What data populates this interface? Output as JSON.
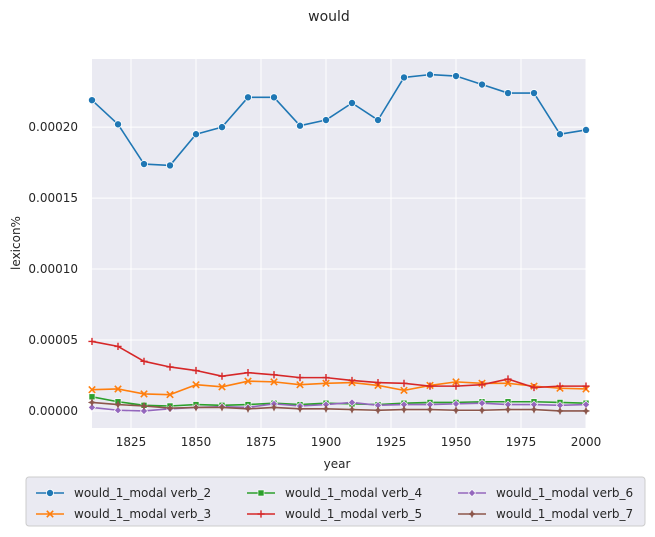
{
  "chart_data": {
    "type": "line",
    "title": "would",
    "xlabel": "year",
    "ylabel": "lexicon%",
    "xlim": [
      1810,
      2000
    ],
    "ylim": [
      -1.2e-05,
      0.000248
    ],
    "x_ticks": [
      1825,
      1850,
      1875,
      1900,
      1925,
      1950,
      1975,
      2000
    ],
    "y_ticks": [
      {
        "value": 0.0,
        "label": "0.00000"
      },
      {
        "value": 5e-05,
        "label": "0.00005"
      },
      {
        "value": 0.0001,
        "label": "0.00010"
      },
      {
        "value": 0.00015,
        "label": "0.00015"
      },
      {
        "value": 0.0002,
        "label": "0.00020"
      }
    ],
    "grid": true,
    "legend_position": "bottom, outside",
    "x": [
      1810,
      1820,
      1830,
      1840,
      1850,
      1860,
      1870,
      1880,
      1890,
      1900,
      1910,
      1920,
      1930,
      1940,
      1950,
      1960,
      1970,
      1980,
      1990,
      2000
    ],
    "series": [
      {
        "name": "would_1_modal verb_2",
        "color": "#1f77b4",
        "marker": "circle",
        "values": [
          0.000219,
          0.000202,
          0.000174,
          0.000173,
          0.000195,
          0.0002,
          0.000221,
          0.000221,
          0.000201,
          0.000205,
          0.000217,
          0.000205,
          0.000235,
          0.000237,
          0.000236,
          0.00023,
          0.000224,
          0.000224,
          0.000195,
          0.000198
        ]
      },
      {
        "name": "would_1_modal verb_3",
        "color": "#ff7f0e",
        "marker": "x",
        "values": [
          1.5e-05,
          1.55e-05,
          1.2e-05,
          1.15e-05,
          1.85e-05,
          1.7e-05,
          2.1e-05,
          2.05e-05,
          1.85e-05,
          1.95e-05,
          2e-05,
          1.8e-05,
          1.45e-05,
          1.8e-05,
          2.05e-05,
          1.95e-05,
          1.95e-05,
          1.75e-05,
          1.6e-05,
          1.55e-05
        ]
      },
      {
        "name": "would_1_modal verb_4",
        "color": "#2ca02c",
        "marker": "square",
        "values": [
          1e-05,
          6.5e-06,
          4e-06,
          3.5e-06,
          4.5e-06,
          4e-06,
          4.5e-06,
          5.5e-06,
          4.5e-06,
          5.5e-06,
          5e-06,
          4.5e-06,
          5.5e-06,
          6e-06,
          6e-06,
          6.5e-06,
          6.5e-06,
          6.5e-06,
          6e-06,
          5.5e-06
        ]
      },
      {
        "name": "would_1_modal verb_5",
        "color": "#d62728",
        "marker": "plus",
        "values": [
          4.9e-05,
          4.55e-05,
          3.5e-05,
          3.1e-05,
          2.85e-05,
          2.45e-05,
          2.7e-05,
          2.55e-05,
          2.35e-05,
          2.35e-05,
          2.15e-05,
          2e-05,
          1.95e-05,
          1.75e-05,
          1.75e-05,
          1.85e-05,
          2.25e-05,
          1.65e-05,
          1.75e-05,
          1.75e-05
        ]
      },
      {
        "name": "would_1_modal verb_6",
        "color": "#9467bd",
        "marker": "diamond",
        "values": [
          2.5e-06,
          5e-07,
          0.0,
          1.5e-06,
          2.5e-06,
          3e-06,
          2.5e-06,
          5e-06,
          3.5e-06,
          4.5e-06,
          6e-06,
          4e-06,
          4.5e-06,
          4.5e-06,
          5e-06,
          5.5e-06,
          4.5e-06,
          4.5e-06,
          4e-06,
          4.5e-06
        ]
      },
      {
        "name": "would_1_modal verb_7",
        "color": "#8c564b",
        "marker": "star",
        "values": [
          6e-06,
          4.5e-06,
          3.5e-06,
          2e-06,
          2.5e-06,
          2.5e-06,
          1.5e-06,
          2.5e-06,
          1.5e-06,
          1.5e-06,
          1e-06,
          5e-07,
          1e-06,
          1e-06,
          5e-07,
          5e-07,
          1e-06,
          1e-06,
          0.0,
          0.0
        ]
      }
    ]
  }
}
